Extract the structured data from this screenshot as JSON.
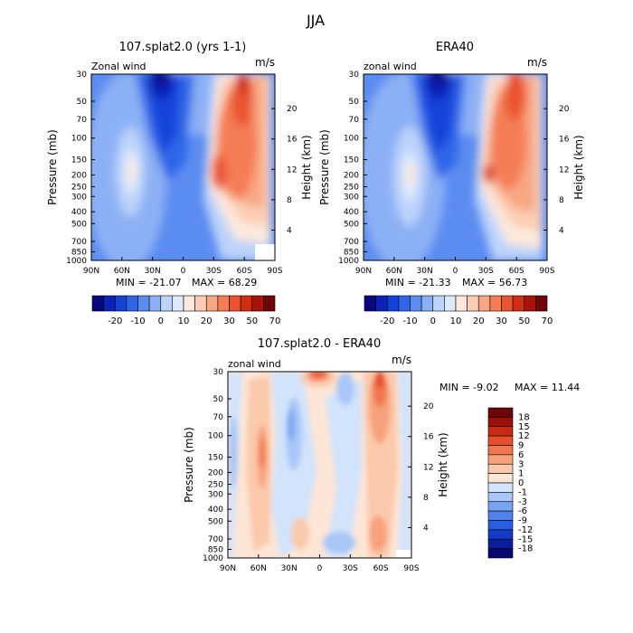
{
  "figure_title": "JJA",
  "colors": {
    "full_wind_scale": [
      "#07077f",
      "#0a22b8",
      "#1442d9",
      "#2f66e8",
      "#5b8cf0",
      "#8cb0f5",
      "#bcd3fa",
      "#dde9fd",
      "#fde9dc",
      "#fbcdb4",
      "#f8a784",
      "#f47d55",
      "#ea532f",
      "#d02d14",
      "#a8140a",
      "#70060a"
    ],
    "difference_scale": [
      "#070770",
      "#0a1e9e",
      "#143bc8",
      "#2a5ee0",
      "#4f82ec",
      "#7aa4f3",
      "#a8c6f8",
      "#d2e3fc",
      "#fde6d6",
      "#fbc9ac",
      "#f7a27c",
      "#f27750",
      "#e6502e",
      "#c92a12",
      "#9c100a",
      "#6b050a"
    ]
  },
  "chart_data": [
    {
      "type": "heatmap",
      "title": "107.splat2.0 (yrs 1-1)",
      "subtitle": "Zonal wind",
      "units_label": "m/s",
      "ylabel": "Pressure (mb)",
      "y2label": "Height (km)",
      "x_ticks": [
        "90N",
        "60N",
        "30N",
        "0",
        "30S",
        "60S",
        "90S"
      ],
      "y_ticks": [
        "30",
        "50",
        "70",
        "100",
        "150",
        "200",
        "250",
        "300",
        "400",
        "500",
        "700",
        "850",
        "1000"
      ],
      "y2_ticks": [
        "20",
        "16",
        "12",
        "8",
        "4"
      ],
      "min_text": "MIN = -21.07",
      "max_text": "MAX = 68.29",
      "min": -21.07,
      "max": 68.29,
      "colorbar_labels": [
        "-20",
        "-10",
        "0",
        "10",
        "20",
        "30",
        "50",
        "70"
      ]
    },
    {
      "type": "heatmap",
      "title": "ERA40",
      "subtitle": "zonal wind",
      "units_label": "m/s",
      "ylabel": "Pressure (mb)",
      "y2label": "Height (km)",
      "x_ticks": [
        "90N",
        "60N",
        "30N",
        "0",
        "30S",
        "60S",
        "90S"
      ],
      "y_ticks": [
        "30",
        "50",
        "70",
        "100",
        "150",
        "200",
        "250",
        "300",
        "400",
        "500",
        "700",
        "850",
        "1000"
      ],
      "y2_ticks": [
        "20",
        "16",
        "12",
        "8",
        "4"
      ],
      "min_text": "MIN = -21.33",
      "max_text": "MAX = 56.73",
      "min": -21.33,
      "max": 56.73,
      "colorbar_labels": [
        "-20",
        "-10",
        "0",
        "10",
        "20",
        "30",
        "50",
        "70"
      ]
    },
    {
      "type": "heatmap",
      "title": "107.splat2.0 - ERA40",
      "subtitle": "zonal wind",
      "units_label": "m/s",
      "ylabel": "Pressure (mb)",
      "y2label": "Height (km)",
      "x_ticks": [
        "90N",
        "60N",
        "30N",
        "0",
        "30S",
        "60S",
        "90S"
      ],
      "y_ticks": [
        "30",
        "50",
        "70",
        "100",
        "150",
        "200",
        "250",
        "300",
        "400",
        "500",
        "700",
        "850",
        "1000"
      ],
      "y2_ticks": [
        "20",
        "16",
        "12",
        "8",
        "4"
      ],
      "min_text": "MIN = -9.02",
      "max_text": "MAX = 11.44",
      "min": -9.02,
      "max": 11.44,
      "colorbar_labels": [
        "18",
        "15",
        "12",
        "9",
        "6",
        "3",
        "1",
        "0",
        "-1",
        "-3",
        "-6",
        "-9",
        "-12",
        "-15",
        "-18"
      ]
    }
  ]
}
